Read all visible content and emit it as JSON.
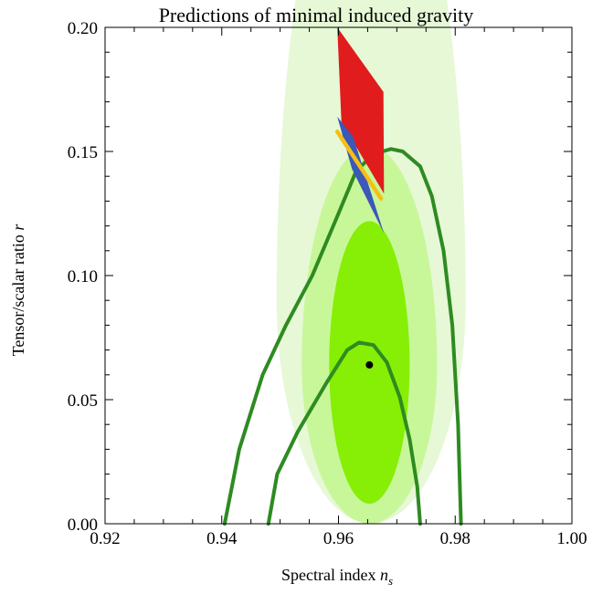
{
  "chart_data": {
    "type": "scatter",
    "title": "Predictions of minimal induced gravity",
    "xlabel_main": "Spectral index ",
    "xlabel_var": "n",
    "xlabel_sub": "s",
    "ylabel_main": "Tensor/scalar ratio ",
    "ylabel_var": "r",
    "xlim": [
      0.92,
      1.0
    ],
    "ylim": [
      0.0,
      0.2
    ],
    "x_ticks": [
      {
        "value": 0.92,
        "label": "0.92"
      },
      {
        "value": 0.94,
        "label": "0.94"
      },
      {
        "value": 0.96,
        "label": "0.96"
      },
      {
        "value": 0.98,
        "label": "0.98"
      },
      {
        "value": 1.0,
        "label": "1.00"
      }
    ],
    "y_ticks": [
      {
        "value": 0.0,
        "label": "0.00"
      },
      {
        "value": 0.05,
        "label": "0.05"
      },
      {
        "value": 0.1,
        "label": "0.10"
      },
      {
        "value": 0.15,
        "label": "0.15"
      },
      {
        "value": 0.2,
        "label": "0.20"
      }
    ],
    "grid": false,
    "confidence_regions": [
      {
        "level": "outer",
        "color": "#e6f8d6",
        "center_x": 0.9656,
        "center_y": 0.09,
        "semi_x": 0.0162,
        "semi_y_top": 0.202,
        "semi_y_bottom": 0.09
      },
      {
        "level": "middle",
        "color": "#c8f79a",
        "center_x": 0.9653,
        "center_y": 0.064,
        "semi_x": 0.0116,
        "semi_y_top": 0.088,
        "semi_y_bottom": 0.064
      },
      {
        "level": "inner",
        "color": "#86ef05",
        "center_x": 0.9653,
        "center_y": 0.064,
        "semi_x": 0.0069,
        "semi_y_top": 0.058,
        "semi_y_bottom": 0.056
      }
    ],
    "contour_lines": [
      {
        "color": "#2e8b22",
        "points": [
          [
            0.9405,
            0.0
          ],
          [
            0.943,
            0.03
          ],
          [
            0.947,
            0.06
          ],
          [
            0.951,
            0.08
          ],
          [
            0.9555,
            0.1
          ],
          [
            0.96,
            0.125
          ],
          [
            0.963,
            0.142
          ],
          [
            0.966,
            0.149
          ],
          [
            0.969,
            0.151
          ],
          [
            0.971,
            0.15
          ],
          [
            0.974,
            0.144
          ],
          [
            0.976,
            0.132
          ],
          [
            0.978,
            0.11
          ],
          [
            0.9795,
            0.08
          ],
          [
            0.9805,
            0.04
          ],
          [
            0.981,
            0.0
          ]
        ]
      },
      {
        "color": "#2e8b22",
        "points": [
          [
            0.948,
            0.0
          ],
          [
            0.9495,
            0.02
          ],
          [
            0.953,
            0.037
          ],
          [
            0.958,
            0.057
          ],
          [
            0.9615,
            0.07
          ],
          [
            0.9635,
            0.073
          ],
          [
            0.966,
            0.072
          ],
          [
            0.9683,
            0.065
          ],
          [
            0.9705,
            0.051
          ],
          [
            0.9722,
            0.034
          ],
          [
            0.9735,
            0.015
          ],
          [
            0.974,
            0.0
          ]
        ]
      }
    ],
    "prediction_regions": [
      {
        "color": "#e01c1c",
        "points": [
          [
            0.9598,
            0.2
          ],
          [
            0.9677,
            0.174
          ],
          [
            0.9678,
            0.133
          ],
          [
            0.9605,
            0.162
          ]
        ]
      },
      {
        "color": "#3c58b8",
        "points": [
          [
            0.9598,
            0.164
          ],
          [
            0.9625,
            0.156
          ],
          [
            0.9678,
            0.117
          ],
          [
            0.9623,
            0.143
          ]
        ]
      }
    ],
    "prediction_line": {
      "color": "#f5c014",
      "points": [
        [
          0.9598,
          0.158
        ],
        [
          0.9673,
          0.131
        ]
      ]
    },
    "best_fit_point": {
      "x": 0.9653,
      "y": 0.064,
      "color": "#000000"
    }
  }
}
